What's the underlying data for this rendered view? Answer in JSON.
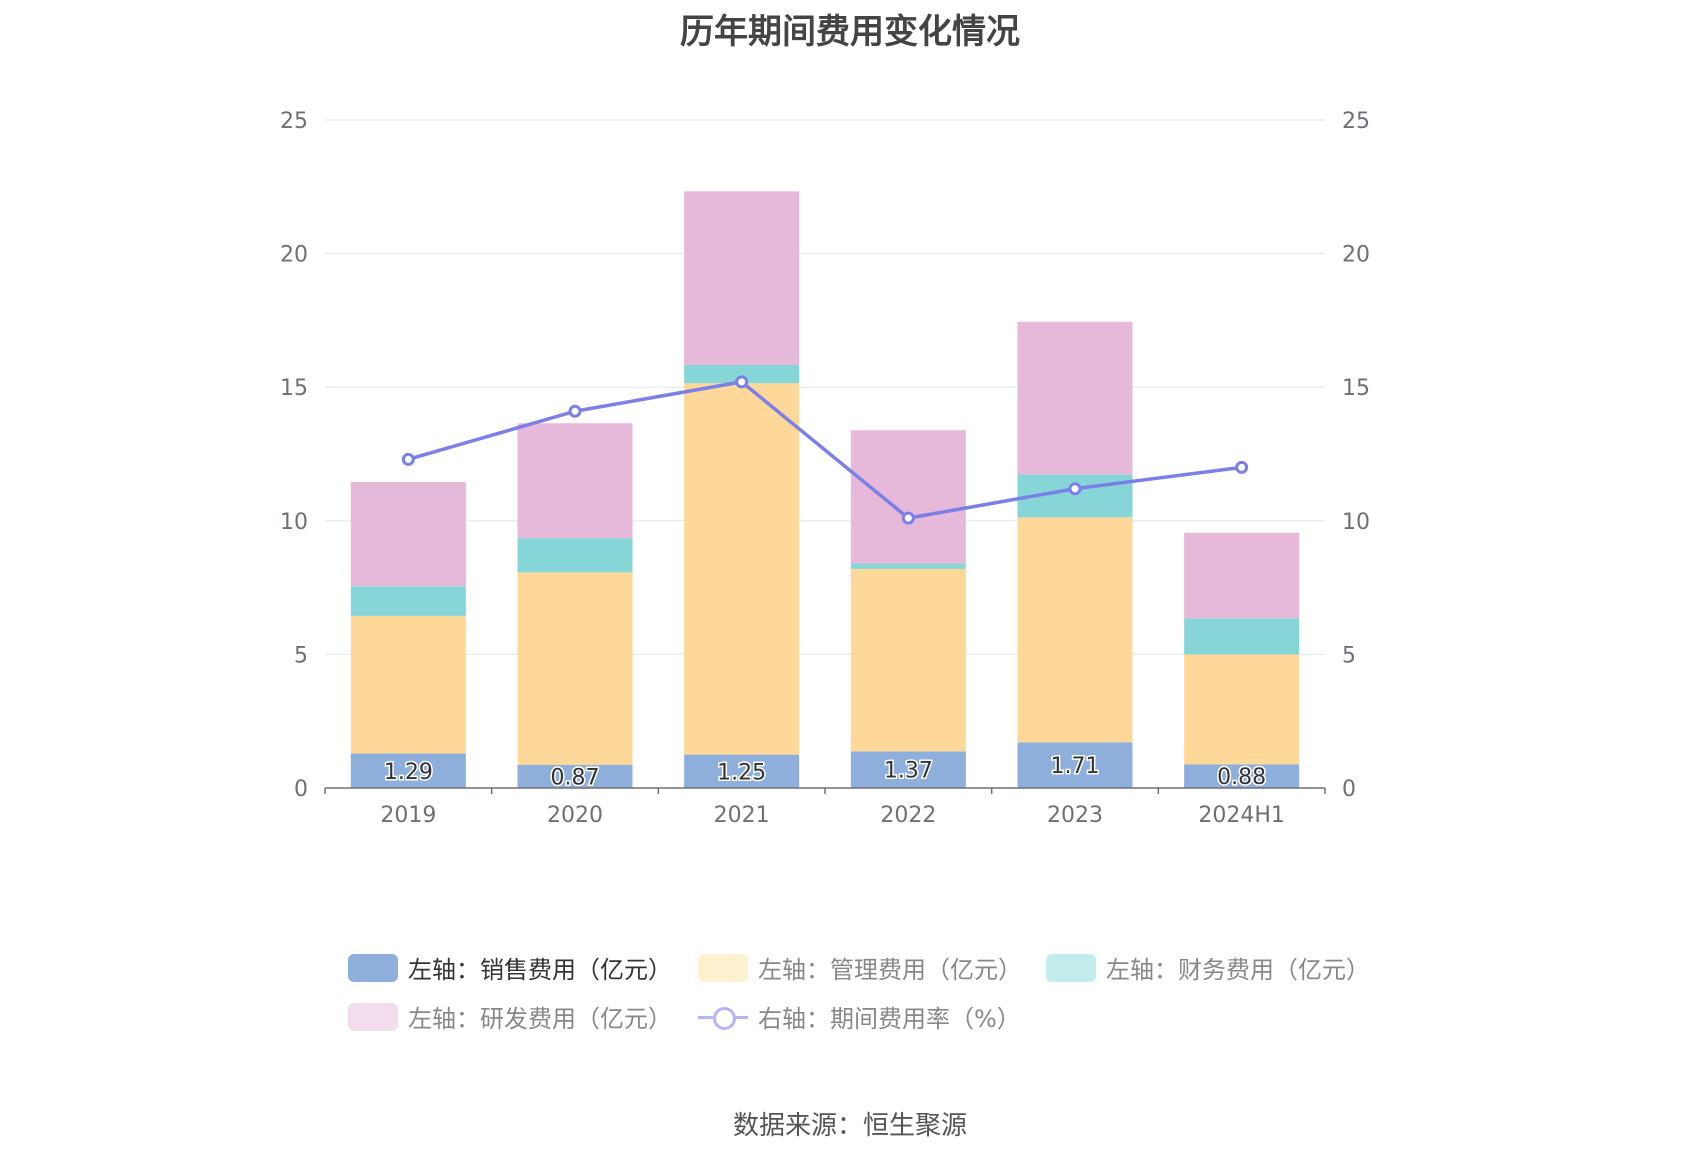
{
  "chart_data": {
    "type": "bar",
    "stacked": true,
    "title": "历年期间费用变化情况",
    "categories": [
      "2019",
      "2020",
      "2021",
      "2022",
      "2023",
      "2024H1"
    ],
    "left_axis": {
      "ylim": [
        0,
        25
      ],
      "ticks": [
        "0",
        "5",
        "10",
        "15",
        "20",
        "25"
      ]
    },
    "right_axis": {
      "ylim": [
        0,
        25
      ],
      "ticks": [
        "0",
        "5",
        "10",
        "15",
        "20",
        "25"
      ]
    },
    "series": [
      {
        "name": "左轴：销售费用（亿元）",
        "axis": "left",
        "type": "bar",
        "color": "#8eaedc",
        "values": [
          1.29,
          0.87,
          1.25,
          1.37,
          1.71,
          0.88
        ],
        "labels": [
          "1.29",
          "0.87",
          "1.25",
          "1.37",
          "1.71",
          "0.88"
        ]
      },
      {
        "name": "左轴：管理费用（亿元）",
        "axis": "left",
        "type": "bar",
        "color": "#fed898",
        "values": [
          5.15,
          7.2,
          13.9,
          6.83,
          8.42,
          4.12
        ]
      },
      {
        "name": "左轴：财务费用（亿元）",
        "axis": "left",
        "type": "bar",
        "color": "#86d6d8",
        "values": [
          1.11,
          1.28,
          0.68,
          0.2,
          1.6,
          1.35
        ]
      },
      {
        "name": "左轴：研发费用（亿元）",
        "axis": "left",
        "type": "bar",
        "color": "#e6b8d9",
        "values": [
          3.9,
          4.3,
          6.5,
          4.99,
          5.72,
          3.2
        ]
      },
      {
        "name": "右轴：期间费用率（%）",
        "axis": "right",
        "type": "line",
        "color": "#7b7fe8",
        "values": [
          12.3,
          14.1,
          15.2,
          10.1,
          11.2,
          12.0
        ]
      }
    ],
    "legend_position": "bottom",
    "grid": true
  },
  "source_text": "数据来源：恒生聚源"
}
